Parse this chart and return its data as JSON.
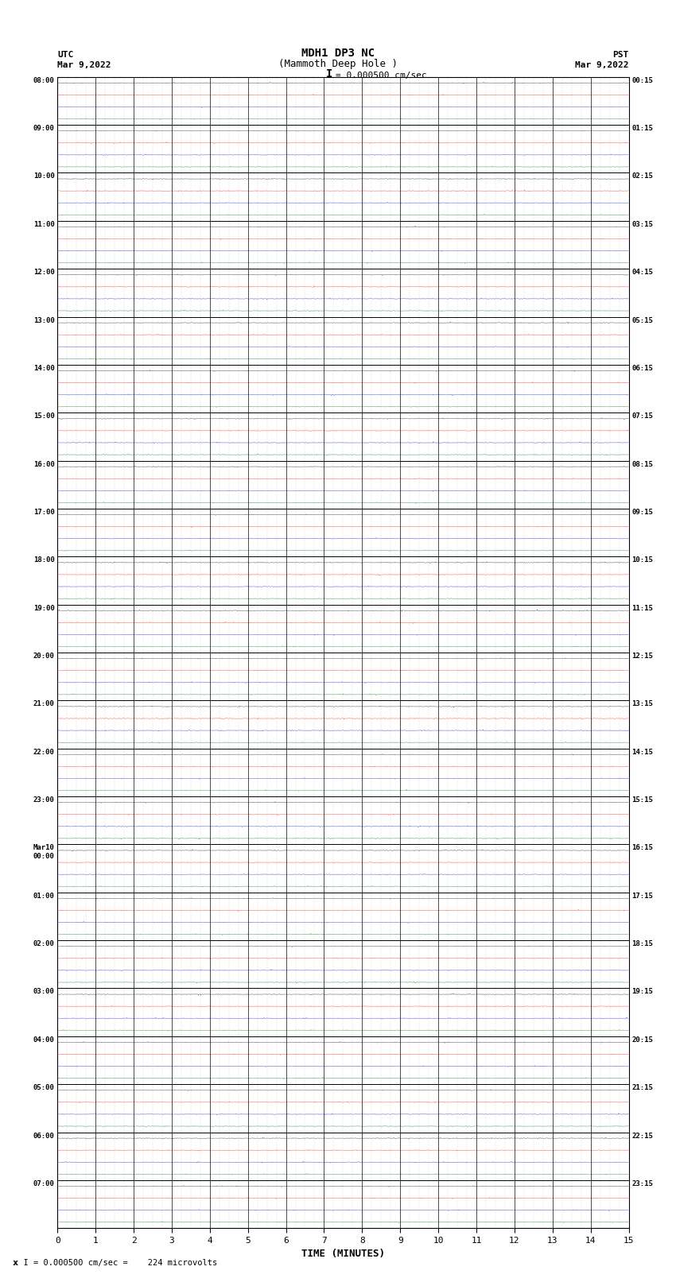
{
  "title_line1": "MDH1 DP3 NC",
  "title_line2": "(Mammoth Deep Hole )",
  "scale_label": "= 0.000500 cm/sec",
  "bottom_label": "x I = 0.000500 cm/sec =    224 microvolts",
  "xlabel": "TIME (MINUTES)",
  "xmin": 0,
  "xmax": 15,
  "xticks": [
    0,
    1,
    2,
    3,
    4,
    5,
    6,
    7,
    8,
    9,
    10,
    11,
    12,
    13,
    14,
    15
  ],
  "num_rows": 24,
  "channels_per_row": 4,
  "utc_labels": [
    "08:00",
    "09:00",
    "10:00",
    "11:00",
    "12:00",
    "13:00",
    "14:00",
    "15:00",
    "16:00",
    "17:00",
    "18:00",
    "19:00",
    "20:00",
    "21:00",
    "22:00",
    "23:00",
    "Mar10\n00:00",
    "01:00",
    "02:00",
    "03:00",
    "04:00",
    "05:00",
    "06:00",
    "07:00"
  ],
  "pst_labels": [
    "00:15",
    "01:15",
    "02:15",
    "03:15",
    "04:15",
    "05:15",
    "06:15",
    "07:15",
    "08:15",
    "09:15",
    "10:15",
    "11:15",
    "12:15",
    "13:15",
    "14:15",
    "15:15",
    "16:15",
    "17:15",
    "18:15",
    "19:15",
    "20:15",
    "21:15",
    "22:15",
    "23:15"
  ],
  "trace_colors": [
    "#000000",
    "#ff0000",
    "#0000cc",
    "#006600"
  ],
  "noise_amplitude": 0.018,
  "background_color": "#ffffff",
  "fig_width": 8.5,
  "fig_height": 16.13
}
